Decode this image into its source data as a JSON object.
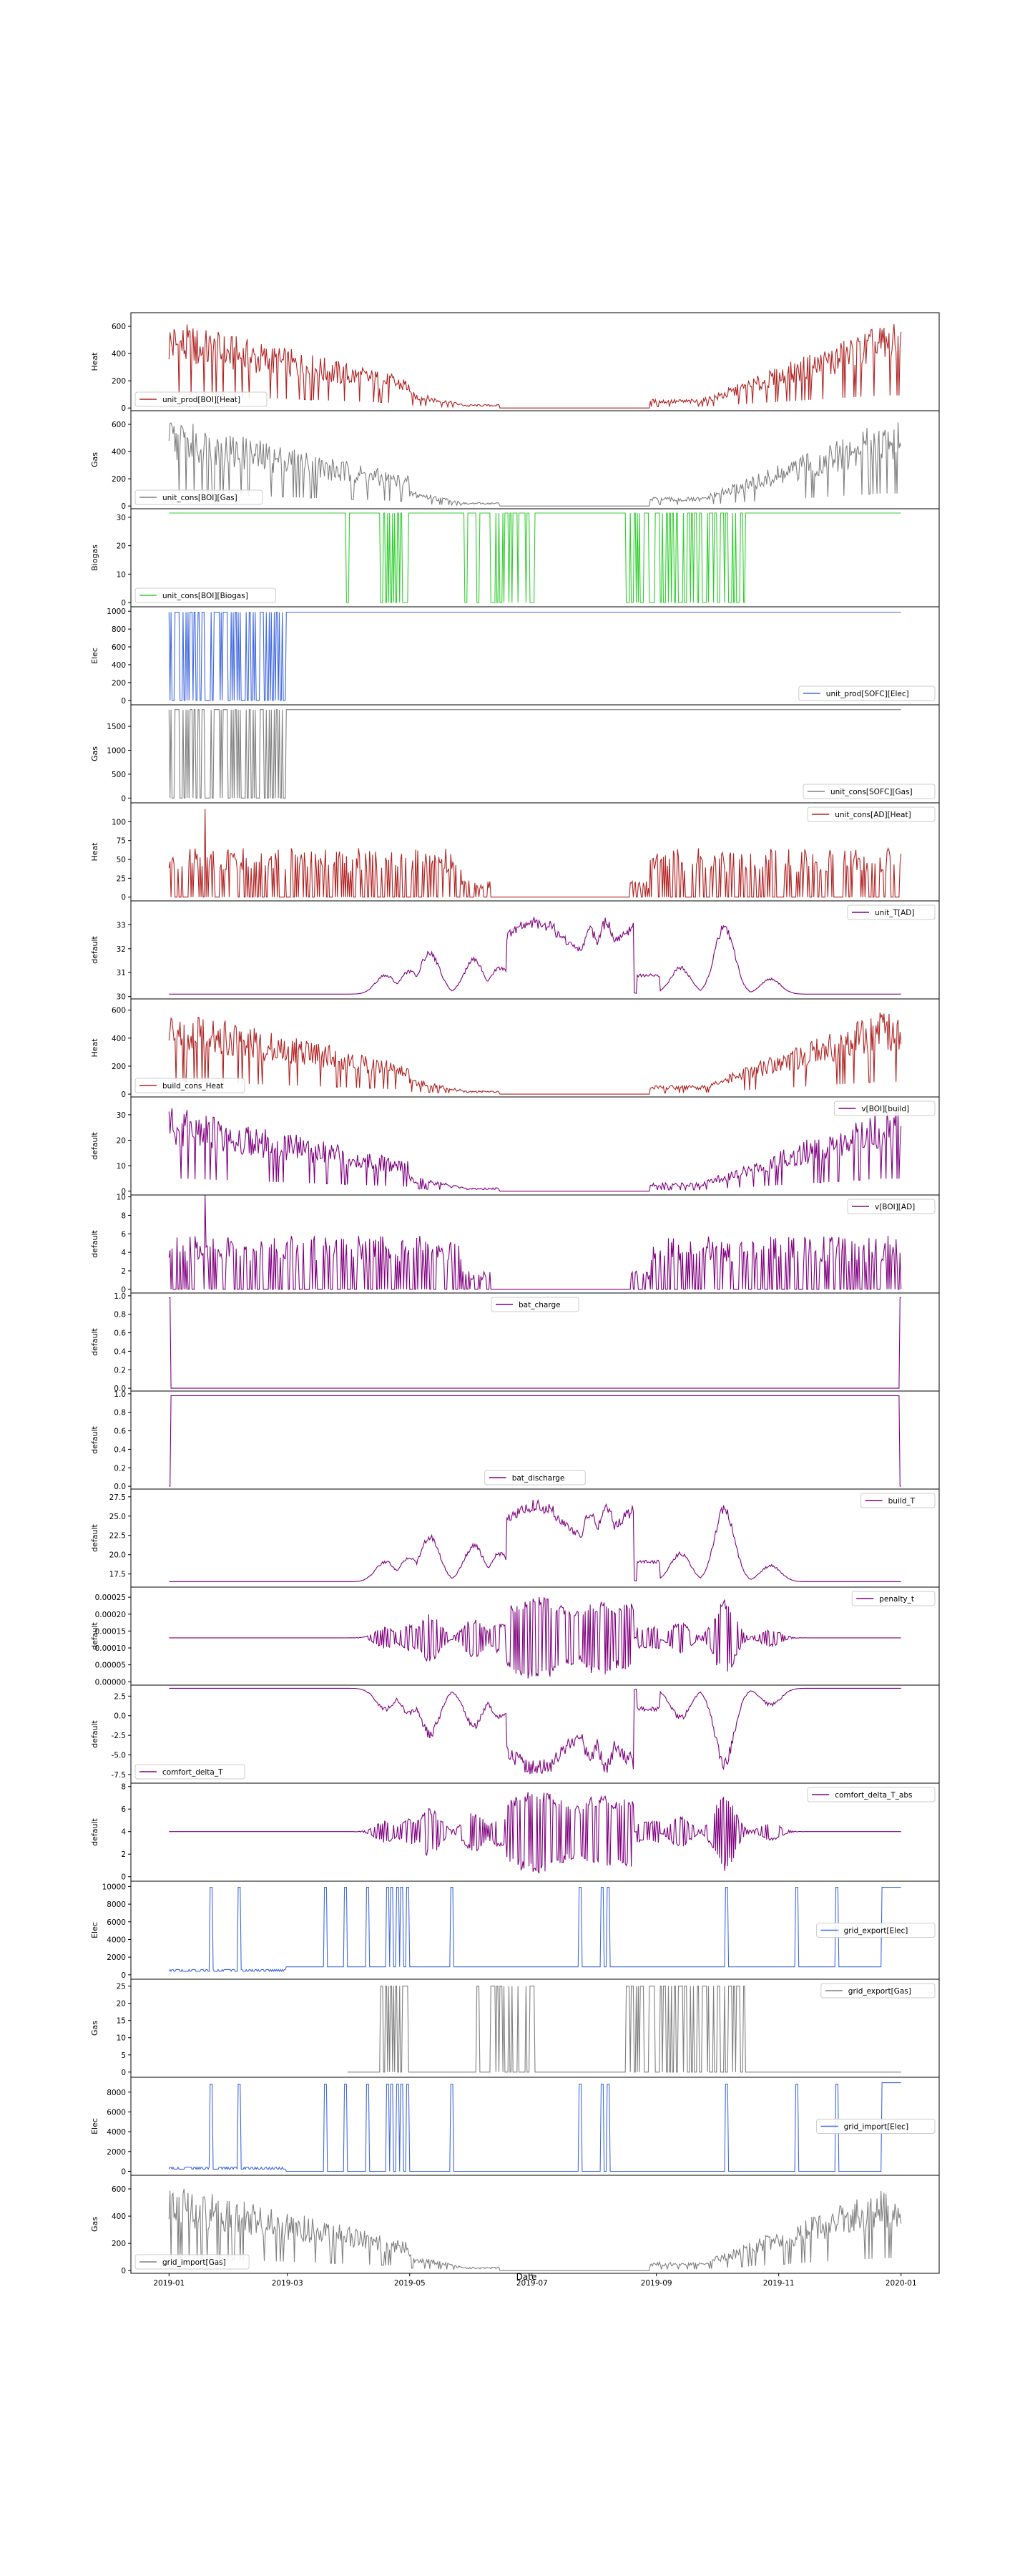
{
  "figure": {
    "xlabel": "Date",
    "x_ticks": [
      "2019-01",
      "2019-03",
      "2019-05",
      "2019-07",
      "2019-09",
      "2019-11",
      "2020-01"
    ]
  },
  "chart_data": [
    {
      "type": "line",
      "ylabel": "Heat",
      "ylim": [
        -20,
        700
      ],
      "yticks": [
        0,
        200,
        400,
        600
      ],
      "legend_loc": "lower-left",
      "grid": false,
      "series": [
        {
          "name": "unit_prod[BOI][Heat]",
          "color": "#b22222",
          "mode": "seasonal",
          "peak": 650
        }
      ]
    },
    {
      "type": "line",
      "ylabel": "Gas",
      "ylim": [
        -20,
        700
      ],
      "yticks": [
        0,
        200,
        400,
        600
      ],
      "legend_loc": "lower-left",
      "grid": false,
      "series": [
        {
          "name": "unit_cons[BOI][Gas]",
          "color": "#808080",
          "mode": "seasonal",
          "peak": 650
        }
      ]
    },
    {
      "type": "line",
      "ylabel": "Biogas",
      "ylim": [
        -1.5,
        33
      ],
      "yticks": [
        0,
        10,
        20,
        30
      ],
      "legend_loc": "lower-left",
      "grid": false,
      "series": [
        {
          "name": "unit_cons[BOI][Biogas]",
          "color": "#32cd32",
          "mode": "switch",
          "high": 31.5,
          "low": 0,
          "default": "high",
          "bands": [
            [
              "2019-04-16",
              "2019-04-30"
            ],
            [
              "2019-06-10",
              "2019-07-02"
            ],
            [
              "2019-08-17",
              "2019-10-15"
            ]
          ],
          "spikes": [
            "2019-03-31",
            "2019-05-29",
            "2019-06-04",
            "2019-06-12"
          ]
        }
      ]
    },
    {
      "type": "line",
      "ylabel": "Elec",
      "ylim": [
        -50,
        1050
      ],
      "yticks": [
        0,
        200,
        400,
        600,
        800,
        1000
      ],
      "legend_loc": "lower-right",
      "grid": false,
      "series": [
        {
          "name": "unit_prod[SOFC][Elec]",
          "color": "#4169e1",
          "mode": "switch",
          "high": 990,
          "low": 0,
          "default": "high",
          "bands": [
            [
              "2019-01-01",
              "2019-01-11"
            ],
            [
              "2019-01-13",
              "2019-01-28"
            ],
            [
              "2019-01-30",
              "2019-02-15"
            ],
            [
              "2019-02-17",
              "2019-02-28"
            ]
          ],
          "spikes": [
            "2019-03-31"
          ]
        }
      ]
    },
    {
      "type": "line",
      "ylabel": "Gas",
      "ylim": [
        -100,
        1950
      ],
      "yticks": [
        0,
        500,
        1000,
        1500
      ],
      "legend_loc": "lower-right",
      "grid": false,
      "series": [
        {
          "name": "unit_cons[SOFC][Gas]",
          "color": "#808080",
          "mode": "switch",
          "high": 1850,
          "low": 0,
          "default": "high",
          "bands": [
            [
              "2019-01-01",
              "2019-01-11"
            ],
            [
              "2019-01-13",
              "2019-01-28"
            ],
            [
              "2019-01-30",
              "2019-02-15"
            ],
            [
              "2019-02-17",
              "2019-02-28"
            ]
          ],
          "spikes": [
            "2019-03-31"
          ]
        }
      ]
    },
    {
      "type": "line",
      "ylabel": "Heat",
      "ylim": [
        -5,
        125
      ],
      "yticks": [
        0,
        25,
        50,
        75,
        100
      ],
      "legend_loc": "upper-right",
      "grid": false,
      "series": [
        {
          "name": "unit_cons[AD][Heat]",
          "color": "#b22222",
          "mode": "bars",
          "peak": 65
        }
      ]
    },
    {
      "type": "line",
      "ylabel": "default",
      "ylim": [
        29.9,
        34.0
      ],
      "yticks": [
        30,
        31,
        32,
        33
      ],
      "legend_loc": "upper-right",
      "grid": false,
      "series": [
        {
          "name": "unit_T[AD]",
          "color": "#800080",
          "mode": "temp",
          "base": 30.1,
          "amp": 3.4
        }
      ]
    },
    {
      "type": "line",
      "ylabel": "Heat",
      "ylim": [
        -20,
        680
      ],
      "yticks": [
        0,
        200,
        400,
        600
      ],
      "legend_loc": "lower-left",
      "grid": false,
      "series": [
        {
          "name": "build_cons_Heat",
          "color": "#b22222",
          "mode": "seasonal",
          "peak": 620
        }
      ]
    },
    {
      "type": "line",
      "ylabel": "default",
      "ylim": [
        -1.5,
        37
      ],
      "yticks": [
        0,
        10,
        20,
        30
      ],
      "legend_loc": "upper-right",
      "grid": false,
      "series": [
        {
          "name": "v[BOI][build]",
          "color": "#800080",
          "mode": "seasonal",
          "peak": 34
        }
      ]
    },
    {
      "type": "line",
      "ylabel": "default",
      "ylim": [
        -0.4,
        10.2
      ],
      "yticks": [
        0,
        2,
        4,
        6,
        8,
        10
      ],
      "legend_loc": "upper-right",
      "grid": false,
      "series": [
        {
          "name": "v[BOI][AD]",
          "color": "#800080",
          "mode": "bars",
          "peak": 5.8
        }
      ]
    },
    {
      "type": "line",
      "ylabel": "default",
      "ylim": [
        -0.03,
        1.03
      ],
      "yticks": [
        0.0,
        0.2,
        0.4,
        0.6,
        0.8,
        1.0
      ],
      "legend_loc": "upper-center",
      "grid": false,
      "series": [
        {
          "name": "bat_charge",
          "color": "#800080",
          "mode": "edge",
          "inner": 0.0,
          "edge": 0.98
        }
      ]
    },
    {
      "type": "line",
      "ylabel": "default",
      "ylim": [
        -0.03,
        1.03
      ],
      "yticks": [
        0.0,
        0.2,
        0.4,
        0.6,
        0.8,
        1.0
      ],
      "legend_loc": "lower-center",
      "grid": false,
      "series": [
        {
          "name": "bat_discharge",
          "color": "#800080",
          "mode": "edge",
          "inner": 0.98,
          "edge": 0.0
        }
      ]
    },
    {
      "type": "line",
      "ylabel": "default",
      "ylim": [
        15.8,
        28.5
      ],
      "yticks": [
        17.5,
        20.0,
        22.5,
        25.0,
        27.5
      ],
      "legend_loc": "upper-right",
      "grid": false,
      "series": [
        {
          "name": "build_T",
          "color": "#800080",
          "mode": "temp",
          "base": 16.5,
          "amp": 11.2
        }
      ]
    },
    {
      "type": "line",
      "ylabel": "default",
      "ylim": [
        -1e-05,
        0.00028
      ],
      "yticks": [
        0.0,
        5e-05,
        0.0001,
        0.00015,
        0.0002,
        0.00025
      ],
      "legend_loc": "upper-right",
      "grid": false,
      "series": [
        {
          "name": "penalty_t",
          "color": "#800080",
          "mode": "mid",
          "base": 0.00013,
          "up": 0.00013,
          "down": 0.00013
        }
      ]
    },
    {
      "type": "line",
      "ylabel": "default",
      "ylim": [
        -8.6,
        3.9
      ],
      "yticks": [
        -7.5,
        -5.0,
        -2.5,
        0.0,
        2.5
      ],
      "legend_loc": "lower-left",
      "grid": false,
      "series": [
        {
          "name": "comfort_delta_T",
          "color": "#800080",
          "mode": "dip",
          "base": 3.5,
          "depth": 11.7
        }
      ]
    },
    {
      "type": "line",
      "ylabel": "default",
      "ylim": [
        -0.4,
        8.3
      ],
      "yticks": [
        0,
        2,
        4,
        6,
        8
      ],
      "legend_loc": "upper-right",
      "grid": false,
      "series": [
        {
          "name": "comfort_delta_T_abs",
          "color": "#800080",
          "mode": "mid",
          "base": 4.0,
          "up": 3.8,
          "down": 4.0
        }
      ]
    },
    {
      "type": "line",
      "ylabel": "Elec",
      "ylim": [
        -500,
        10600
      ],
      "yticks": [
        0,
        2000,
        4000,
        6000,
        8000,
        10000
      ],
      "legend_loc": "center-right",
      "grid": false,
      "series": [
        {
          "name": "grid_export[Elec]",
          "color": "#4169e1",
          "mode": "grid",
          "base": 900,
          "high": 9900,
          "final": 9900,
          "lowbase": 400,
          "lowbase_until": "2019-02-28",
          "spikes": [
            "2019-01-22",
            "2019-02-05",
            "2019-03-20",
            "2019-03-30",
            "2019-04-10",
            "2019-04-20",
            "2019-04-22",
            "2019-04-25",
            "2019-04-27",
            "2019-04-30",
            "2019-05-22",
            "2019-07-25",
            "2019-08-05",
            "2019-08-08",
            "2019-10-06",
            "2019-11-10",
            "2019-11-30"
          ]
        }
      ]
    },
    {
      "type": "line",
      "ylabel": "Gas",
      "ylim": [
        -1.5,
        27
      ],
      "yticks": [
        0,
        5,
        10,
        15,
        20,
        25
      ],
      "legend_loc": "upper-right",
      "grid": false,
      "series": [
        {
          "name": "grid_export[Gas]",
          "color": "#808080",
          "mode": "switch",
          "high": 25,
          "low": 0,
          "default": "low",
          "start": "2019-03-31",
          "bands": [
            [
              "2019-04-16",
              "2019-04-30"
            ],
            [
              "2019-06-10",
              "2019-07-02"
            ],
            [
              "2019-08-17",
              "2019-10-15"
            ]
          ],
          "spikes": [
            "2019-06-04",
            "2019-06-12"
          ]
        }
      ]
    },
    {
      "type": "line",
      "ylabel": "Elec",
      "ylim": [
        -400,
        9500
      ],
      "yticks": [
        0,
        2000,
        4000,
        6000,
        8000
      ],
      "legend_loc": "center-right",
      "grid": false,
      "series": [
        {
          "name": "grid_import[Elec]",
          "color": "#4169e1",
          "mode": "grid",
          "base": 0,
          "high": 8800,
          "final": 8950,
          "lowbase": 220,
          "lowbase_until": "2019-02-28",
          "spikes": [
            "2019-01-22",
            "2019-02-05",
            "2019-03-20",
            "2019-03-30",
            "2019-04-10",
            "2019-04-20",
            "2019-04-22",
            "2019-04-25",
            "2019-04-27",
            "2019-04-30",
            "2019-05-22",
            "2019-07-25",
            "2019-08-05",
            "2019-08-08",
            "2019-10-06",
            "2019-11-10",
            "2019-11-30"
          ]
        }
      ]
    },
    {
      "type": "line",
      "ylabel": "Gas",
      "ylim": [
        -20,
        700
      ],
      "yticks": [
        0,
        200,
        400,
        600
      ],
      "legend_loc": "lower-left",
      "grid": false,
      "series": [
        {
          "name": "grid_import[Gas]",
          "color": "#808080",
          "mode": "seasonal",
          "peak": 640
        }
      ]
    }
  ]
}
